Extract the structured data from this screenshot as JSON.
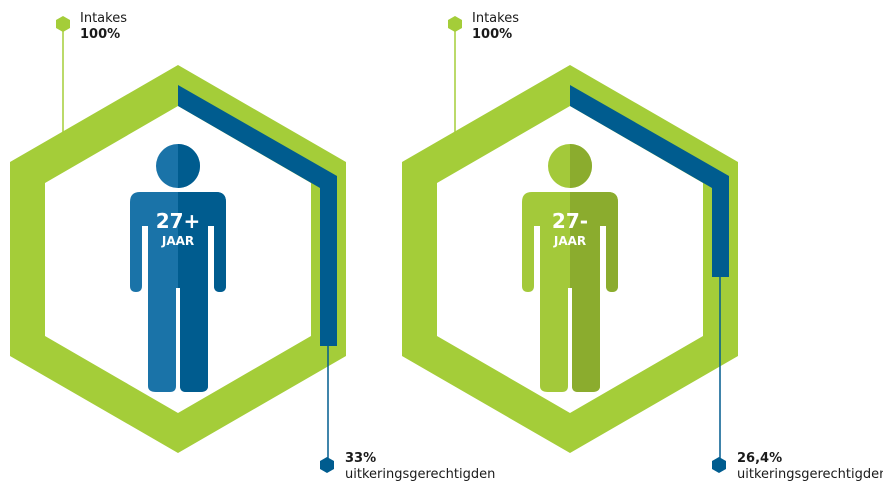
{
  "panels": [
    {
      "top_label": "Intakes",
      "top_value": "100%",
      "badge_value": "27+",
      "badge_unit": "JAAR",
      "bottom_value": "33%",
      "bottom_label": "uitkeringsgerechtigden",
      "person_color": "#005c8f",
      "person_shade": "#1a73a8"
    },
    {
      "top_label": "Intakes",
      "top_value": "100%",
      "badge_value": "27-",
      "badge_unit": "JAAR",
      "bottom_value": "26,4%",
      "bottom_label": "uitkeringsgerechtigden",
      "person_color": "#8bac2e",
      "person_shade": "#a3c93a"
    }
  ],
  "colors": {
    "hex_green": "#a4cd39",
    "progress_blue": "#005c8f"
  }
}
